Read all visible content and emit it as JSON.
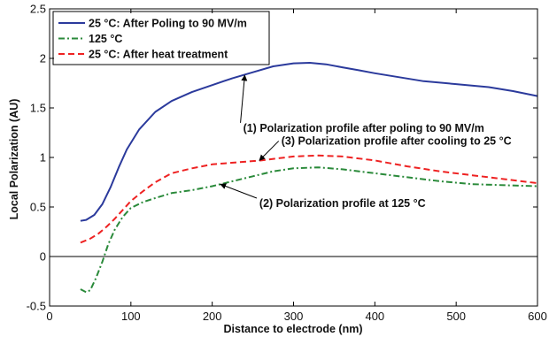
{
  "chart_data": {
    "type": "line",
    "title": "",
    "xlabel": "Distance to electrode (nm)",
    "ylabel": "Local Polarization (AU)",
    "xlim": [
      0,
      600
    ],
    "ylim": [
      -0.5,
      2.5
    ],
    "xticks": [
      0,
      100,
      200,
      300,
      400,
      500,
      600
    ],
    "yticks": [
      -0.5,
      0,
      0.5,
      1,
      1.5,
      2,
      2.5
    ],
    "zero_line": true,
    "grid": false,
    "legend_position": "top-left",
    "series": [
      {
        "name": "25   °C: After Poling to 90 MV/m",
        "color": "#2b3a9c",
        "style": "solid",
        "x": [
          38,
          45,
          55,
          65,
          75,
          85,
          95,
          110,
          130,
          150,
          175,
          200,
          225,
          250,
          275,
          300,
          320,
          340,
          360,
          380,
          400,
          430,
          460,
          500,
          540,
          570,
          600
        ],
        "y": [
          0.36,
          0.37,
          0.42,
          0.53,
          0.7,
          0.9,
          1.08,
          1.28,
          1.46,
          1.57,
          1.66,
          1.73,
          1.8,
          1.86,
          1.92,
          1.95,
          1.955,
          1.94,
          1.91,
          1.88,
          1.85,
          1.81,
          1.77,
          1.74,
          1.71,
          1.67,
          1.62
        ]
      },
      {
        "name": "125 °C",
        "color": "#2a8a3a",
        "style": "dashdot",
        "x": [
          38,
          45,
          50,
          57,
          65,
          72,
          80,
          90,
          100,
          115,
          130,
          150,
          175,
          200,
          225,
          250,
          275,
          300,
          330,
          360,
          400,
          440,
          480,
          520,
          560,
          600
        ],
        "y": [
          -0.33,
          -0.36,
          -0.34,
          -0.22,
          -0.05,
          0.12,
          0.27,
          0.4,
          0.49,
          0.55,
          0.59,
          0.64,
          0.67,
          0.71,
          0.76,
          0.81,
          0.86,
          0.89,
          0.9,
          0.88,
          0.84,
          0.8,
          0.76,
          0.73,
          0.72,
          0.71
        ]
      },
      {
        "name": "25   °C: After heat treatment",
        "color": "#ee2222",
        "style": "dashed",
        "x": [
          38,
          50,
          60,
          70,
          80,
          90,
          100,
          115,
          130,
          150,
          175,
          200,
          230,
          260,
          280,
          300,
          330,
          360,
          400,
          440,
          480,
          520,
          560,
          600
        ],
        "y": [
          0.14,
          0.18,
          0.23,
          0.3,
          0.38,
          0.47,
          0.56,
          0.66,
          0.75,
          0.84,
          0.89,
          0.93,
          0.95,
          0.97,
          0.99,
          1.01,
          1.02,
          1.01,
          0.97,
          0.91,
          0.86,
          0.82,
          0.78,
          0.74
        ]
      }
    ],
    "annotations": [
      {
        "text": "(1) Polarization profile after poling to 90 MV/m",
        "x": 238,
        "y": 1.26,
        "arrow_to_x": 240,
        "arrow_to_y": 1.83
      },
      {
        "text": "(3) Polarization profile after cooling to 25 °C",
        "x": 285,
        "y": 1.13,
        "arrow_to_x": 258,
        "arrow_to_y": 0.97
      },
      {
        "text": "(2) Polarization profile at 125 °C",
        "x": 258,
        "y": 0.5,
        "arrow_to_x": 210,
        "arrow_to_y": 0.73
      }
    ]
  }
}
